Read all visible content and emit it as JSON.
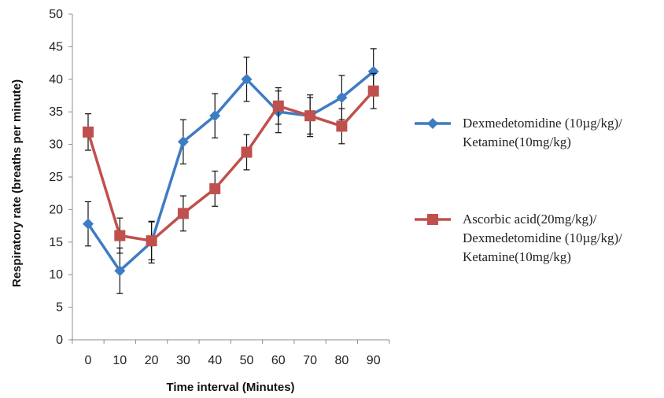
{
  "chart_data": {
    "type": "line",
    "xlabel": "Time interval (Minutes)",
    "ylabel": "Respiratory rate (breaths per minute)",
    "x": [
      0,
      10,
      20,
      30,
      40,
      50,
      60,
      70,
      80,
      90
    ],
    "ylim": [
      0,
      50
    ],
    "yticks": [
      0,
      5,
      10,
      15,
      20,
      25,
      30,
      35,
      40,
      45,
      50
    ],
    "grid": false,
    "legend_position": "right",
    "series": [
      {
        "name": "Dexmedetomidine (10µg/kg)/ Ketamine(10mg/kg)",
        "legend_lines": [
          "Dexmedetomidine (10µg/kg)/",
          "Ketamine(10mg/kg)"
        ],
        "color": "#3e7cc3",
        "marker": "diamond",
        "values": [
          17.8,
          10.6,
          15.0,
          30.4,
          34.4,
          40.0,
          35.0,
          34.4,
          37.2,
          41.2
        ],
        "errors": [
          3.4,
          3.5,
          3.2,
          3.4,
          3.4,
          3.4,
          3.2,
          3.2,
          3.4,
          3.5
        ]
      },
      {
        "name": "Ascorbic acid(20mg/kg)/ Dexmedetomidine (10µg/kg)/ Ketamine(10mg/kg)",
        "legend_lines": [
          "Ascorbic acid(20mg/kg)/",
          "Dexmedetomidine (10µg/kg)/",
          "Ketamine(10mg/kg)"
        ],
        "color": "#c0504d",
        "marker": "square",
        "values": [
          31.9,
          16.0,
          15.2,
          19.4,
          23.2,
          28.8,
          35.9,
          34.4,
          32.8,
          38.2
        ],
        "errors": [
          2.8,
          2.7,
          2.9,
          2.7,
          2.7,
          2.7,
          2.8,
          2.8,
          2.7,
          2.7
        ]
      }
    ]
  }
}
